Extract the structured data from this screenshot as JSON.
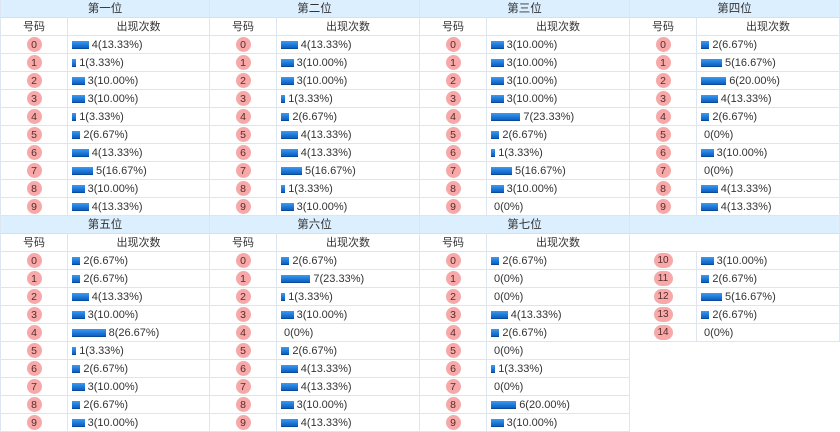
{
  "column_headers": {
    "number": "号码",
    "count": "出现次数"
  },
  "colors": {
    "header_bg": "#dcefff",
    "ball": "#f7a8a8",
    "bar": "#1a73d9",
    "border": "#dde6ee"
  },
  "panels": [
    {
      "title": "第一位",
      "rows": [
        {
          "num": "0",
          "count": 4,
          "label": "4(13.33%)"
        },
        {
          "num": "1",
          "count": 1,
          "label": "1(3.33%)"
        },
        {
          "num": "2",
          "count": 3,
          "label": "3(10.00%)"
        },
        {
          "num": "3",
          "count": 3,
          "label": "3(10.00%)"
        },
        {
          "num": "4",
          "count": 1,
          "label": "1(3.33%)"
        },
        {
          "num": "5",
          "count": 2,
          "label": "2(6.67%)"
        },
        {
          "num": "6",
          "count": 4,
          "label": "4(13.33%)"
        },
        {
          "num": "7",
          "count": 5,
          "label": "5(16.67%)"
        },
        {
          "num": "8",
          "count": 3,
          "label": "3(10.00%)"
        },
        {
          "num": "9",
          "count": 4,
          "label": "4(13.33%)"
        }
      ]
    },
    {
      "title": "第二位",
      "rows": [
        {
          "num": "0",
          "count": 4,
          "label": "4(13.33%)"
        },
        {
          "num": "1",
          "count": 3,
          "label": "3(10.00%)"
        },
        {
          "num": "2",
          "count": 3,
          "label": "3(10.00%)"
        },
        {
          "num": "3",
          "count": 1,
          "label": "1(3.33%)"
        },
        {
          "num": "4",
          "count": 2,
          "label": "2(6.67%)"
        },
        {
          "num": "5",
          "count": 4,
          "label": "4(13.33%)"
        },
        {
          "num": "6",
          "count": 4,
          "label": "4(13.33%)"
        },
        {
          "num": "7",
          "count": 5,
          "label": "5(16.67%)"
        },
        {
          "num": "8",
          "count": 1,
          "label": "1(3.33%)"
        },
        {
          "num": "9",
          "count": 3,
          "label": "3(10.00%)"
        }
      ]
    },
    {
      "title": "第三位",
      "rows": [
        {
          "num": "0",
          "count": 3,
          "label": "3(10.00%)"
        },
        {
          "num": "1",
          "count": 3,
          "label": "3(10.00%)"
        },
        {
          "num": "2",
          "count": 3,
          "label": "3(10.00%)"
        },
        {
          "num": "3",
          "count": 3,
          "label": "3(10.00%)"
        },
        {
          "num": "4",
          "count": 7,
          "label": "7(23.33%)"
        },
        {
          "num": "5",
          "count": 2,
          "label": "2(6.67%)"
        },
        {
          "num": "6",
          "count": 1,
          "label": "1(3.33%)"
        },
        {
          "num": "7",
          "count": 5,
          "label": "5(16.67%)"
        },
        {
          "num": "8",
          "count": 3,
          "label": "3(10.00%)"
        },
        {
          "num": "9",
          "count": 0,
          "label": "0(0%)"
        }
      ]
    },
    {
      "title": "第四位",
      "rows": [
        {
          "num": "0",
          "count": 2,
          "label": "2(6.67%)"
        },
        {
          "num": "1",
          "count": 5,
          "label": "5(16.67%)"
        },
        {
          "num": "2",
          "count": 6,
          "label": "6(20.00%)"
        },
        {
          "num": "3",
          "count": 4,
          "label": "4(13.33%)"
        },
        {
          "num": "4",
          "count": 2,
          "label": "2(6.67%)"
        },
        {
          "num": "5",
          "count": 0,
          "label": "0(0%)"
        },
        {
          "num": "6",
          "count": 3,
          "label": "3(10.00%)"
        },
        {
          "num": "7",
          "count": 0,
          "label": "0(0%)"
        },
        {
          "num": "8",
          "count": 4,
          "label": "4(13.33%)"
        },
        {
          "num": "9",
          "count": 4,
          "label": "4(13.33%)"
        }
      ]
    },
    {
      "title": "第五位",
      "rows": [
        {
          "num": "0",
          "count": 2,
          "label": "2(6.67%)"
        },
        {
          "num": "1",
          "count": 2,
          "label": "2(6.67%)"
        },
        {
          "num": "2",
          "count": 4,
          "label": "4(13.33%)"
        },
        {
          "num": "3",
          "count": 3,
          "label": "3(10.00%)"
        },
        {
          "num": "4",
          "count": 8,
          "label": "8(26.67%)"
        },
        {
          "num": "5",
          "count": 1,
          "label": "1(3.33%)"
        },
        {
          "num": "6",
          "count": 2,
          "label": "2(6.67%)"
        },
        {
          "num": "7",
          "count": 3,
          "label": "3(10.00%)"
        },
        {
          "num": "8",
          "count": 2,
          "label": "2(6.67%)"
        },
        {
          "num": "9",
          "count": 3,
          "label": "3(10.00%)"
        }
      ]
    },
    {
      "title": "第六位",
      "rows": [
        {
          "num": "0",
          "count": 2,
          "label": "2(6.67%)"
        },
        {
          "num": "1",
          "count": 7,
          "label": "7(23.33%)"
        },
        {
          "num": "2",
          "count": 1,
          "label": "1(3.33%)"
        },
        {
          "num": "3",
          "count": 3,
          "label": "3(10.00%)"
        },
        {
          "num": "4",
          "count": 0,
          "label": "0(0%)"
        },
        {
          "num": "5",
          "count": 2,
          "label": "2(6.67%)"
        },
        {
          "num": "6",
          "count": 4,
          "label": "4(13.33%)"
        },
        {
          "num": "7",
          "count": 4,
          "label": "4(13.33%)"
        },
        {
          "num": "8",
          "count": 3,
          "label": "3(10.00%)"
        },
        {
          "num": "9",
          "count": 4,
          "label": "4(13.33%)"
        }
      ]
    },
    {
      "title": "第七位",
      "rows": [
        {
          "num": "0",
          "count": 2,
          "label": "2(6.67%)"
        },
        {
          "num": "1",
          "count": 0,
          "label": "0(0%)"
        },
        {
          "num": "2",
          "count": 0,
          "label": "0(0%)"
        },
        {
          "num": "3",
          "count": 4,
          "label": "4(13.33%)"
        },
        {
          "num": "4",
          "count": 2,
          "label": "2(6.67%)"
        },
        {
          "num": "5",
          "count": 0,
          "label": "0(0%)"
        },
        {
          "num": "6",
          "count": 1,
          "label": "1(3.33%)"
        },
        {
          "num": "7",
          "count": 0,
          "label": "0(0%)"
        },
        {
          "num": "8",
          "count": 6,
          "label": "6(20.00%)"
        },
        {
          "num": "9",
          "count": 3,
          "label": "3(10.00%)"
        }
      ]
    },
    {
      "title": "",
      "rows": [
        {
          "num": "10",
          "count": 3,
          "label": "3(10.00%)"
        },
        {
          "num": "11",
          "count": 2,
          "label": "2(6.67%)"
        },
        {
          "num": "12",
          "count": 5,
          "label": "5(16.67%)"
        },
        {
          "num": "13",
          "count": 2,
          "label": "2(6.67%)"
        },
        {
          "num": "14",
          "count": 0,
          "label": "0(0%)"
        }
      ]
    }
  ]
}
